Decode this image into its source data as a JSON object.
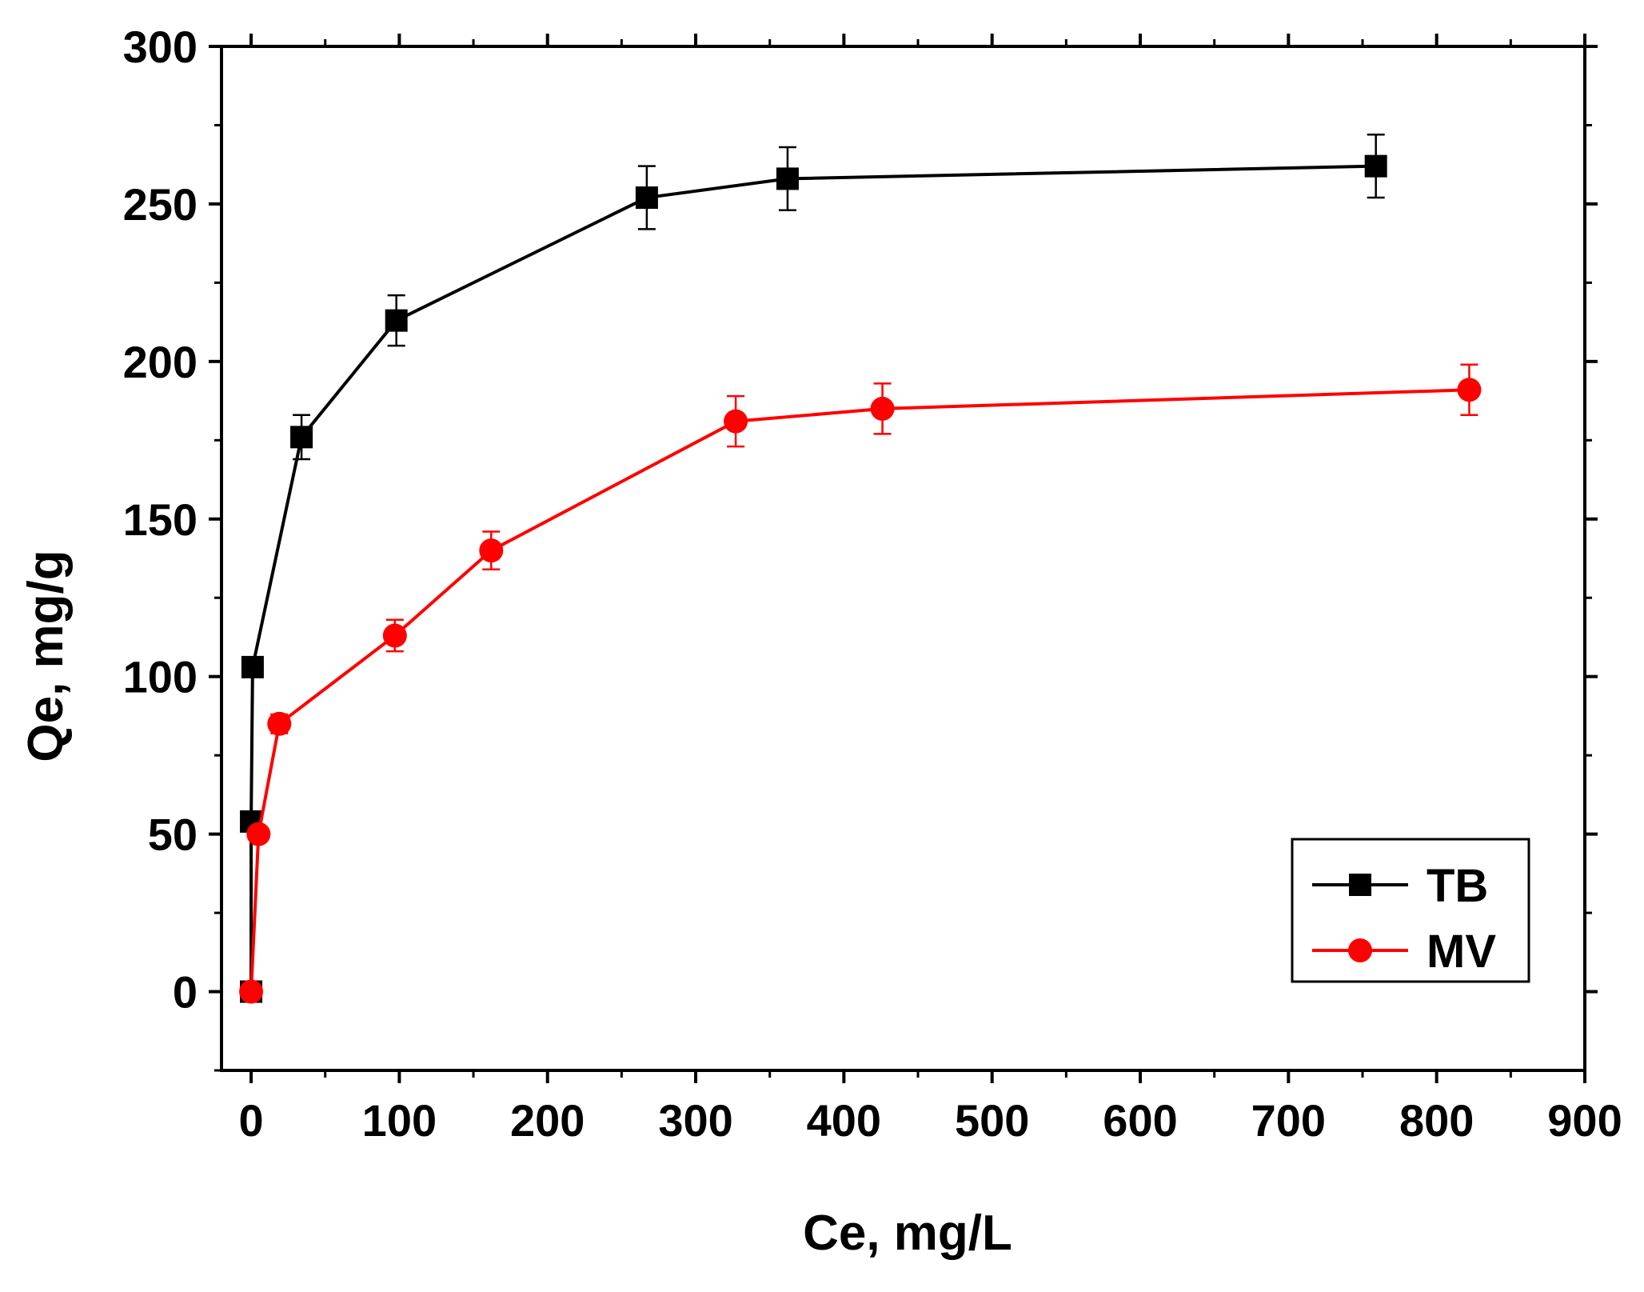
{
  "chart_data": {
    "type": "line",
    "title": "",
    "xlabel": "Ce, mg/L",
    "ylabel": "Qe, mg/g",
    "xlim": [
      -20,
      900
    ],
    "ylim": [
      -25,
      300
    ],
    "xticks": [
      0,
      100,
      200,
      300,
      400,
      500,
      600,
      700,
      800,
      900
    ],
    "yticks": [
      0,
      50,
      100,
      150,
      200,
      250,
      300
    ],
    "xtick_labels": [
      "0",
      "100",
      "200",
      "300",
      "400",
      "500",
      "600",
      "700",
      "800",
      "900"
    ],
    "ytick_labels": [
      "0",
      "50",
      "100",
      "150",
      "200",
      "250",
      "300"
    ],
    "grid": false,
    "legend_position": "bottom-right",
    "series": [
      {
        "name": "TB",
        "color": "#000000",
        "marker": "square",
        "x": [
          0,
          0,
          1,
          34,
          98,
          267,
          362,
          759
        ],
        "y": [
          0,
          54,
          103,
          176,
          213,
          252,
          258,
          262
        ],
        "error": [
          0,
          0,
          3,
          7,
          8,
          10,
          10,
          10
        ]
      },
      {
        "name": "MV",
        "color": "#ff0000",
        "marker": "circle",
        "x": [
          0,
          5,
          19,
          97,
          162,
          327,
          426,
          822
        ],
        "y": [
          0,
          50,
          85,
          113,
          140,
          181,
          185,
          191
        ],
        "error": [
          0,
          0,
          3,
          5,
          6,
          8,
          8,
          8
        ]
      }
    ]
  }
}
